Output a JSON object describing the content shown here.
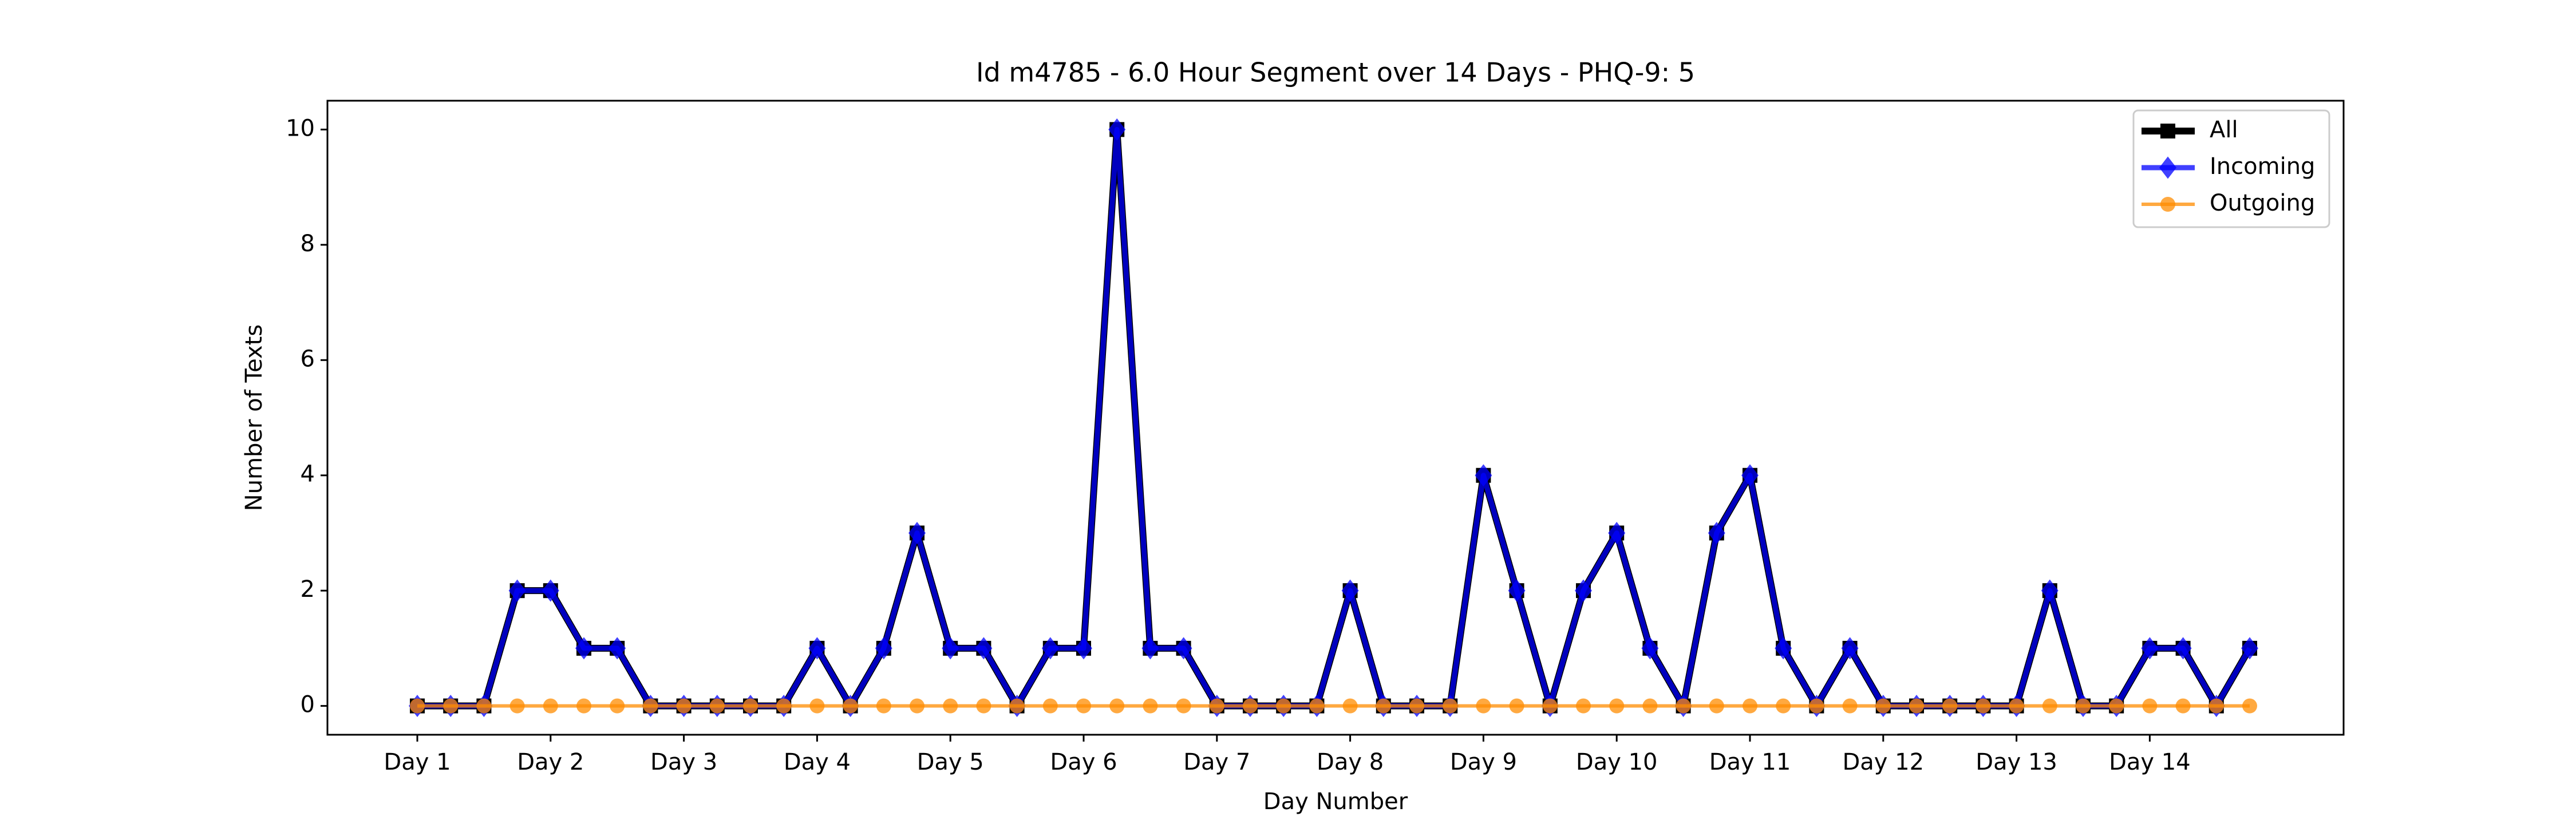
{
  "chart_data": {
    "type": "line",
    "title": "Id m4785 - 6.0 Hour Segment over 14 Days - PHQ-9: 5",
    "x_label": "Day Number",
    "y_label": "Number of Texts",
    "categories": [
      "Day 1",
      null,
      null,
      null,
      "Day 2",
      null,
      null,
      null,
      "Day 3",
      null,
      null,
      null,
      "Day 4",
      null,
      null,
      null,
      "Day 5",
      null,
      null,
      null,
      "Day 6",
      null,
      null,
      null,
      "Day 7",
      null,
      null,
      null,
      "Day 8",
      null,
      null,
      null,
      "Day 9",
      null,
      null,
      null,
      "Day 10",
      null,
      null,
      null,
      "Day 11",
      null,
      null,
      null,
      "Day 12",
      null,
      null,
      null,
      "Day 13",
      null,
      null,
      null,
      "Day 14",
      null,
      null,
      null
    ],
    "series": [
      {
        "name": "All",
        "color": "#000000",
        "marker": "square",
        "values": [
          0,
          0,
          0,
          2,
          2,
          1,
          1,
          0,
          0,
          0,
          0,
          0,
          1,
          0,
          1,
          3,
          1,
          1,
          0,
          1,
          1,
          10,
          1,
          1,
          0,
          0,
          0,
          0,
          2,
          0,
          0,
          0,
          4,
          2,
          0,
          2,
          3,
          1,
          0,
          3,
          4,
          1,
          0,
          1,
          0,
          0,
          0,
          0,
          0,
          2,
          0,
          0,
          1,
          1,
          0,
          1
        ]
      },
      {
        "name": "Incoming",
        "color": "#0000ff",
        "marker": "diamond",
        "values": [
          0,
          0,
          0,
          2,
          2,
          1,
          1,
          0,
          0,
          0,
          0,
          0,
          1,
          0,
          1,
          3,
          1,
          1,
          0,
          1,
          1,
          10,
          1,
          1,
          0,
          0,
          0,
          0,
          2,
          0,
          0,
          0,
          4,
          2,
          0,
          2,
          3,
          1,
          0,
          3,
          4,
          1,
          0,
          1,
          0,
          0,
          0,
          0,
          0,
          2,
          0,
          0,
          1,
          1,
          0,
          1
        ]
      },
      {
        "name": "Outgoing",
        "color": "#ff8c00",
        "marker": "circle",
        "values": [
          0,
          0,
          0,
          0,
          0,
          0,
          0,
          0,
          0,
          0,
          0,
          0,
          0,
          0,
          0,
          0,
          0,
          0,
          0,
          0,
          0,
          0,
          0,
          0,
          0,
          0,
          0,
          0,
          0,
          0,
          0,
          0,
          0,
          0,
          0,
          0,
          0,
          0,
          0,
          0,
          0,
          0,
          0,
          0,
          0,
          0,
          0,
          0,
          0,
          0,
          0,
          0,
          0,
          0,
          0,
          0
        ]
      }
    ],
    "ylim": [
      -0.5,
      10.5
    ],
    "yticks": [
      0,
      2,
      4,
      6,
      8,
      10
    ],
    "grid": false,
    "legend": "upper right"
  }
}
